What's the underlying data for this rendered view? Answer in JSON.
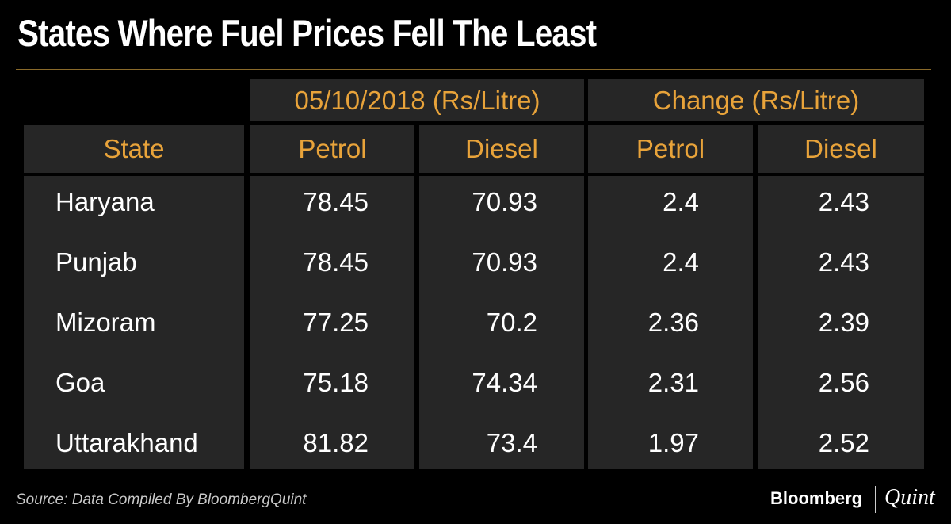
{
  "header": {
    "title": "States Where Fuel Prices Fell The Least"
  },
  "table": {
    "group_headers": [
      "05/10/2018 (Rs/Litre)",
      "Change (Rs/Litre)"
    ],
    "columns": [
      "State",
      "Petrol",
      "Diesel",
      "Petrol",
      "Diesel"
    ],
    "rows": [
      [
        "Haryana",
        "78.45",
        "70.93",
        "2.4",
        "2.43"
      ],
      [
        "Punjab",
        "78.45",
        "70.93",
        "2.4",
        "2.43"
      ],
      [
        "Mizoram",
        "77.25",
        "70.2",
        "2.36",
        "2.39"
      ],
      [
        "Goa",
        "75.18",
        "74.34",
        "2.31",
        "2.56"
      ],
      [
        "Uttarakhand",
        "81.82",
        "73.4",
        "1.97",
        "2.52"
      ]
    ]
  },
  "footer": {
    "source": "Source: Data Compiled By BloombergQuint",
    "brand": "Bloomberg",
    "brand_second": "Quint"
  }
}
